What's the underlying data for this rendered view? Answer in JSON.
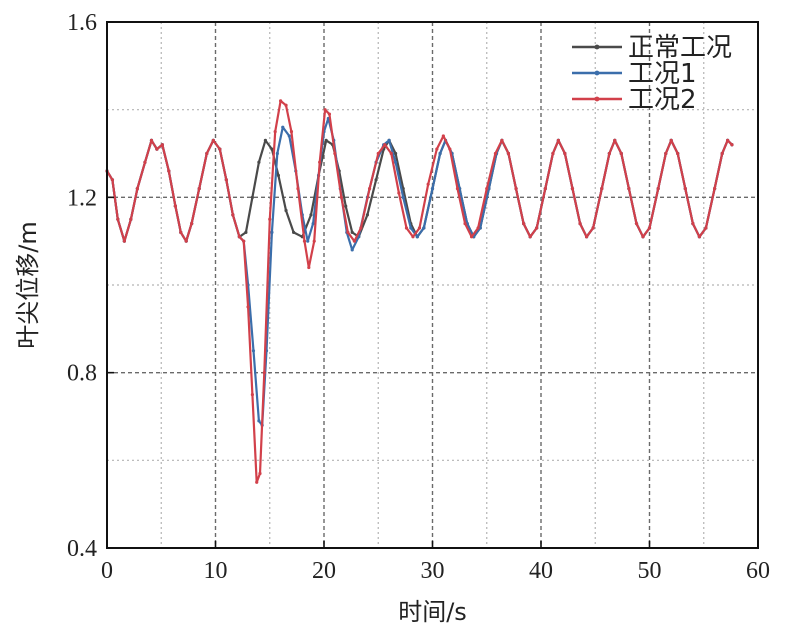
{
  "chart_data": {
    "type": "line",
    "title": "",
    "xlabel": "时间/s",
    "ylabel": "叶尖位移/m",
    "xlim": [
      0,
      60
    ],
    "ylim": [
      0.4,
      1.6
    ],
    "xticks": [
      0,
      10,
      20,
      30,
      40,
      50,
      60
    ],
    "yticks": [
      0.4,
      0.8,
      1.2,
      1.6
    ],
    "xtick_labels": [
      "0",
      "10",
      "20",
      "30",
      "40",
      "50",
      "60"
    ],
    "ytick_labels": [
      "0.4",
      "0.8",
      "1.2",
      "1.6"
    ],
    "grid": true,
    "legend_position": "top-right",
    "series": [
      {
        "name": "正常工况",
        "color": "#4a4a4a",
        "points": [
          [
            0,
            1.26
          ],
          [
            0.5,
            1.24
          ],
          [
            1,
            1.15
          ],
          [
            1.6,
            1.1
          ],
          [
            2.2,
            1.15
          ],
          [
            2.8,
            1.22
          ],
          [
            3.5,
            1.28
          ],
          [
            4.1,
            1.33
          ],
          [
            4.6,
            1.31
          ],
          [
            5.1,
            1.32
          ],
          [
            5.7,
            1.26
          ],
          [
            6.3,
            1.18
          ],
          [
            6.8,
            1.12
          ],
          [
            7.3,
            1.1
          ],
          [
            7.8,
            1.14
          ],
          [
            8.5,
            1.22
          ],
          [
            9.2,
            1.3
          ],
          [
            9.8,
            1.33
          ],
          [
            10.4,
            1.31
          ],
          [
            11.0,
            1.24
          ],
          [
            11.6,
            1.16
          ],
          [
            12.2,
            1.11
          ],
          [
            12.8,
            1.12
          ],
          [
            13.4,
            1.2
          ],
          [
            14.0,
            1.28
          ],
          [
            14.6,
            1.33
          ],
          [
            15.2,
            1.31
          ],
          [
            15.8,
            1.25
          ],
          [
            16.5,
            1.17
          ],
          [
            17.2,
            1.12
          ],
          [
            18.0,
            1.11
          ],
          [
            18.8,
            1.16
          ],
          [
            19.5,
            1.25
          ],
          [
            20.2,
            1.33
          ],
          [
            20.8,
            1.32
          ],
          [
            21.4,
            1.26
          ],
          [
            22.0,
            1.18
          ],
          [
            22.6,
            1.12
          ],
          [
            23.2,
            1.11
          ],
          [
            24.0,
            1.16
          ],
          [
            24.8,
            1.24
          ],
          [
            25.5,
            1.31
          ],
          [
            26.0,
            1.33
          ],
          [
            26.6,
            1.3
          ],
          [
            27.3,
            1.22
          ],
          [
            28.0,
            1.14
          ],
          [
            28.6,
            1.11
          ],
          [
            29.2,
            1.13
          ],
          [
            30.0,
            1.22
          ],
          [
            30.7,
            1.3
          ],
          [
            31.2,
            1.33
          ],
          [
            31.8,
            1.3
          ],
          [
            32.5,
            1.22
          ],
          [
            33.2,
            1.14
          ],
          [
            33.8,
            1.11
          ],
          [
            34.4,
            1.13
          ],
          [
            35.2,
            1.22
          ],
          [
            35.9,
            1.3
          ],
          [
            36.4,
            1.33
          ],
          [
            37.0,
            1.3
          ],
          [
            37.7,
            1.22
          ],
          [
            38.4,
            1.14
          ],
          [
            39.0,
            1.11
          ],
          [
            39.6,
            1.13
          ],
          [
            40.4,
            1.22
          ],
          [
            41.1,
            1.3
          ],
          [
            41.6,
            1.33
          ],
          [
            42.2,
            1.3
          ],
          [
            42.9,
            1.22
          ],
          [
            43.6,
            1.14
          ],
          [
            44.2,
            1.11
          ],
          [
            44.8,
            1.13
          ],
          [
            45.6,
            1.22
          ],
          [
            46.3,
            1.3
          ],
          [
            46.8,
            1.33
          ],
          [
            47.4,
            1.3
          ],
          [
            48.1,
            1.22
          ],
          [
            48.8,
            1.14
          ],
          [
            49.4,
            1.11
          ],
          [
            50.0,
            1.13
          ],
          [
            50.8,
            1.22
          ],
          [
            51.5,
            1.3
          ],
          [
            52.0,
            1.33
          ],
          [
            52.6,
            1.3
          ],
          [
            53.3,
            1.22
          ],
          [
            54.0,
            1.14
          ],
          [
            54.6,
            1.11
          ],
          [
            55.2,
            1.13
          ],
          [
            56.0,
            1.22
          ],
          [
            56.7,
            1.3
          ],
          [
            57.2,
            1.33
          ],
          [
            57.6,
            1.32
          ]
        ]
      },
      {
        "name": "工况1",
        "color": "#3b6eab",
        "points": [
          [
            0,
            1.26
          ],
          [
            0.5,
            1.24
          ],
          [
            1,
            1.15
          ],
          [
            1.6,
            1.1
          ],
          [
            2.2,
            1.15
          ],
          [
            2.8,
            1.22
          ],
          [
            3.5,
            1.28
          ],
          [
            4.1,
            1.33
          ],
          [
            4.6,
            1.31
          ],
          [
            5.1,
            1.32
          ],
          [
            5.7,
            1.26
          ],
          [
            6.3,
            1.18
          ],
          [
            6.8,
            1.12
          ],
          [
            7.3,
            1.1
          ],
          [
            7.8,
            1.14
          ],
          [
            8.5,
            1.22
          ],
          [
            9.2,
            1.3
          ],
          [
            9.8,
            1.33
          ],
          [
            10.4,
            1.31
          ],
          [
            11.0,
            1.24
          ],
          [
            11.6,
            1.16
          ],
          [
            12.2,
            1.11
          ],
          [
            12.6,
            1.1
          ],
          [
            13.0,
            1.0
          ],
          [
            13.5,
            0.85
          ],
          [
            14.0,
            0.69
          ],
          [
            14.3,
            0.68
          ],
          [
            14.7,
            0.85
          ],
          [
            15.2,
            1.12
          ],
          [
            15.7,
            1.3
          ],
          [
            16.2,
            1.36
          ],
          [
            16.8,
            1.34
          ],
          [
            17.4,
            1.26
          ],
          [
            18.0,
            1.16
          ],
          [
            18.5,
            1.1
          ],
          [
            19.0,
            1.14
          ],
          [
            19.5,
            1.25
          ],
          [
            20.0,
            1.35
          ],
          [
            20.4,
            1.38
          ],
          [
            20.9,
            1.33
          ],
          [
            21.5,
            1.22
          ],
          [
            22.1,
            1.12
          ],
          [
            22.6,
            1.08
          ],
          [
            23.2,
            1.11
          ],
          [
            24.0,
            1.2
          ],
          [
            24.8,
            1.28
          ],
          [
            25.5,
            1.32
          ],
          [
            26.0,
            1.33
          ],
          [
            26.6,
            1.28
          ],
          [
            27.3,
            1.2
          ],
          [
            28.0,
            1.13
          ],
          [
            28.6,
            1.11
          ],
          [
            29.2,
            1.13
          ],
          [
            30.0,
            1.22
          ],
          [
            30.7,
            1.3
          ],
          [
            31.2,
            1.33
          ],
          [
            31.8,
            1.3
          ],
          [
            32.5,
            1.22
          ],
          [
            33.2,
            1.14
          ],
          [
            33.8,
            1.11
          ],
          [
            34.4,
            1.13
          ],
          [
            35.2,
            1.22
          ],
          [
            35.9,
            1.3
          ],
          [
            36.4,
            1.33
          ],
          [
            37.0,
            1.3
          ],
          [
            37.7,
            1.22
          ],
          [
            38.4,
            1.14
          ],
          [
            39.0,
            1.11
          ],
          [
            39.6,
            1.13
          ],
          [
            40.4,
            1.22
          ],
          [
            41.1,
            1.3
          ],
          [
            41.6,
            1.33
          ],
          [
            42.2,
            1.3
          ],
          [
            42.9,
            1.22
          ],
          [
            43.6,
            1.14
          ],
          [
            44.2,
            1.11
          ],
          [
            44.8,
            1.13
          ],
          [
            45.6,
            1.22
          ],
          [
            46.3,
            1.3
          ],
          [
            46.8,
            1.33
          ],
          [
            47.4,
            1.3
          ],
          [
            48.1,
            1.22
          ],
          [
            48.8,
            1.14
          ],
          [
            49.4,
            1.11
          ],
          [
            50.0,
            1.13
          ],
          [
            50.8,
            1.22
          ],
          [
            51.5,
            1.3
          ],
          [
            52.0,
            1.33
          ],
          [
            52.6,
            1.3
          ],
          [
            53.3,
            1.22
          ],
          [
            54.0,
            1.14
          ],
          [
            54.6,
            1.11
          ],
          [
            55.2,
            1.13
          ],
          [
            56.0,
            1.22
          ],
          [
            56.7,
            1.3
          ],
          [
            57.2,
            1.33
          ],
          [
            57.6,
            1.32
          ]
        ]
      },
      {
        "name": "工况2",
        "color": "#d2404a",
        "points": [
          [
            0,
            1.26
          ],
          [
            0.5,
            1.24
          ],
          [
            1,
            1.15
          ],
          [
            1.6,
            1.1
          ],
          [
            2.2,
            1.15
          ],
          [
            2.8,
            1.22
          ],
          [
            3.5,
            1.28
          ],
          [
            4.1,
            1.33
          ],
          [
            4.6,
            1.31
          ],
          [
            5.1,
            1.32
          ],
          [
            5.7,
            1.26
          ],
          [
            6.3,
            1.18
          ],
          [
            6.8,
            1.12
          ],
          [
            7.3,
            1.1
          ],
          [
            7.8,
            1.14
          ],
          [
            8.5,
            1.22
          ],
          [
            9.2,
            1.3
          ],
          [
            9.8,
            1.33
          ],
          [
            10.4,
            1.31
          ],
          [
            11.0,
            1.24
          ],
          [
            11.6,
            1.16
          ],
          [
            12.2,
            1.11
          ],
          [
            12.6,
            1.1
          ],
          [
            13.0,
            0.95
          ],
          [
            13.4,
            0.75
          ],
          [
            13.8,
            0.55
          ],
          [
            14.1,
            0.57
          ],
          [
            14.5,
            0.8
          ],
          [
            15.0,
            1.15
          ],
          [
            15.5,
            1.35
          ],
          [
            16.0,
            1.42
          ],
          [
            16.5,
            1.41
          ],
          [
            17.0,
            1.35
          ],
          [
            17.6,
            1.22
          ],
          [
            18.2,
            1.1
          ],
          [
            18.6,
            1.04
          ],
          [
            19.1,
            1.1
          ],
          [
            19.6,
            1.28
          ],
          [
            20.1,
            1.4
          ],
          [
            20.5,
            1.39
          ],
          [
            21.0,
            1.3
          ],
          [
            21.6,
            1.2
          ],
          [
            22.2,
            1.12
          ],
          [
            22.8,
            1.1
          ],
          [
            23.4,
            1.13
          ],
          [
            24.2,
            1.22
          ],
          [
            25.0,
            1.3
          ],
          [
            25.6,
            1.32
          ],
          [
            26.2,
            1.3
          ],
          [
            26.9,
            1.21
          ],
          [
            27.6,
            1.13
          ],
          [
            28.2,
            1.11
          ],
          [
            28.8,
            1.13
          ],
          [
            29.6,
            1.23
          ],
          [
            30.4,
            1.31
          ],
          [
            31.0,
            1.34
          ],
          [
            31.6,
            1.31
          ],
          [
            32.3,
            1.22
          ],
          [
            33.0,
            1.14
          ],
          [
            33.6,
            1.11
          ],
          [
            34.2,
            1.13
          ],
          [
            35.0,
            1.22
          ],
          [
            35.8,
            1.3
          ],
          [
            36.4,
            1.33
          ],
          [
            37.0,
            1.3
          ],
          [
            37.7,
            1.22
          ],
          [
            38.4,
            1.14
          ],
          [
            39.0,
            1.11
          ],
          [
            39.6,
            1.13
          ],
          [
            40.4,
            1.22
          ],
          [
            41.1,
            1.3
          ],
          [
            41.6,
            1.33
          ],
          [
            42.2,
            1.3
          ],
          [
            42.9,
            1.22
          ],
          [
            43.6,
            1.14
          ],
          [
            44.2,
            1.11
          ],
          [
            44.8,
            1.13
          ],
          [
            45.6,
            1.22
          ],
          [
            46.3,
            1.3
          ],
          [
            46.8,
            1.33
          ],
          [
            47.4,
            1.3
          ],
          [
            48.1,
            1.22
          ],
          [
            48.8,
            1.14
          ],
          [
            49.4,
            1.11
          ],
          [
            50.0,
            1.13
          ],
          [
            50.8,
            1.22
          ],
          [
            51.5,
            1.3
          ],
          [
            52.0,
            1.33
          ],
          [
            52.6,
            1.3
          ],
          [
            53.3,
            1.22
          ],
          [
            54.0,
            1.14
          ],
          [
            54.6,
            1.11
          ],
          [
            55.2,
            1.13
          ],
          [
            56.0,
            1.22
          ],
          [
            56.7,
            1.3
          ],
          [
            57.2,
            1.33
          ],
          [
            57.6,
            1.32
          ]
        ]
      }
    ]
  }
}
